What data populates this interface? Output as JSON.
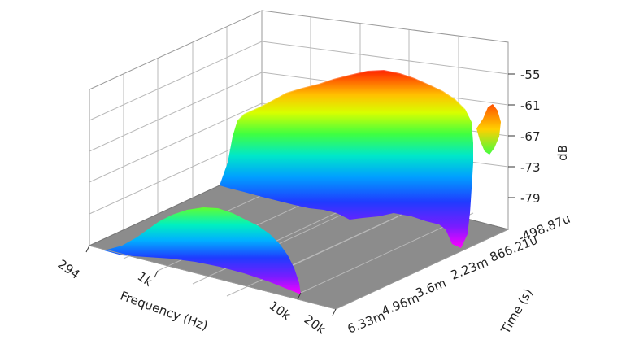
{
  "chart_data": {
    "type": "surface",
    "title": "",
    "xlabel": "Frequency (Hz)",
    "ylabel": "Time (s)",
    "zlabel": "dB",
    "x_ticks": [
      "294",
      "1k",
      "10k",
      "20k"
    ],
    "y_ticks": [
      "-498.87u",
      "866.21u",
      "2.23m",
      "3.6m",
      "4.96m",
      "6.33m"
    ],
    "z_ticks": [
      "-55",
      "-61",
      "-67",
      "-73",
      "-79"
    ],
    "zlim": [
      -85,
      -53
    ],
    "colormap": "rainbow (magenta low to red high)",
    "floor_color": "#8c8c8c",
    "grid": true,
    "surfaces": [
      {
        "region": "main ridge",
        "x_range": [
          "1k",
          "20k"
        ],
        "y_range": [
          "-498.87u",
          "3.6m"
        ],
        "peak_dB": -55,
        "profile_x": [
          "1k",
          "2k",
          "4k",
          "6k",
          "8k",
          "10k",
          "14k",
          "20k"
        ],
        "profile_dB": [
          -70,
          -61,
          -57,
          -55,
          -55,
          -56,
          -61,
          -66
        ]
      },
      {
        "region": "low mound",
        "x_range": [
          "294",
          "10k"
        ],
        "y_range": [
          "3.6m",
          "6.33m"
        ],
        "peak_dB": -72,
        "profile_x": [
          "294",
          "600",
          "1k",
          "2k",
          "4k",
          "10k"
        ],
        "profile_dB": [
          -85,
          -79,
          -74,
          -72,
          -74,
          -85
        ]
      }
    ]
  }
}
